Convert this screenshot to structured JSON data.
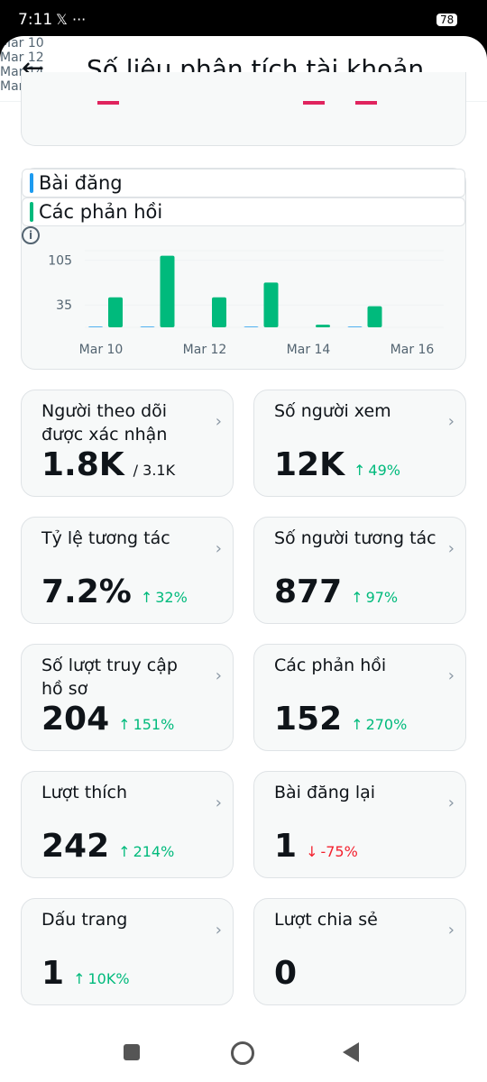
{
  "status_bar": {
    "time": "7:11",
    "battery": "78"
  },
  "header": {
    "title": "Số liệu phân tích tài khoản"
  },
  "top_chart": {
    "x_labels": [
      "Mar 10",
      "Mar 12",
      "Mar 14",
      "Mar 16"
    ]
  },
  "chart_data": {
    "type": "bar",
    "categories": [
      "Mar 10",
      null,
      "Mar 12",
      null,
      "Mar 14",
      null,
      "Mar 16"
    ],
    "series": [
      {
        "name": "Bài đăng",
        "color": "#1d9bf0",
        "values": [
          1,
          1,
          0,
          1,
          0,
          1,
          0
        ]
      },
      {
        "name": "Các phản hồi",
        "color": "#00ba7c",
        "values": [
          47,
          112,
          47,
          70,
          4,
          33,
          0
        ]
      }
    ],
    "ylim": [
      0,
      120
    ],
    "yticks": [
      35,
      105
    ],
    "grid": true
  },
  "cards": [
    {
      "label": "Người theo dõi được xác nhận",
      "value": "1.8K",
      "extra": "/ 3.1K"
    },
    {
      "label": "Số người xem",
      "value": "12K",
      "change": "49%",
      "trend": "up"
    },
    {
      "label": "Tỷ lệ tương tác",
      "value": "7.2%",
      "change": "32%",
      "trend": "up"
    },
    {
      "label": "Số người tương tác",
      "value": "877",
      "change": "97%",
      "trend": "up"
    },
    {
      "label": "Số lượt truy cập hồ sơ",
      "value": "204",
      "change": "151%",
      "trend": "up"
    },
    {
      "label": "Các phản hồi",
      "value": "152",
      "change": "270%",
      "trend": "up"
    },
    {
      "label": "Lượt thích",
      "value": "242",
      "change": "214%",
      "trend": "up"
    },
    {
      "label": "Bài đăng lại",
      "value": "1",
      "change": "-75%",
      "trend": "down"
    },
    {
      "label": "Dấu trang",
      "value": "1",
      "change": "10K%",
      "trend": "up"
    },
    {
      "label": "Lượt chia sẻ",
      "value": "0"
    }
  ]
}
